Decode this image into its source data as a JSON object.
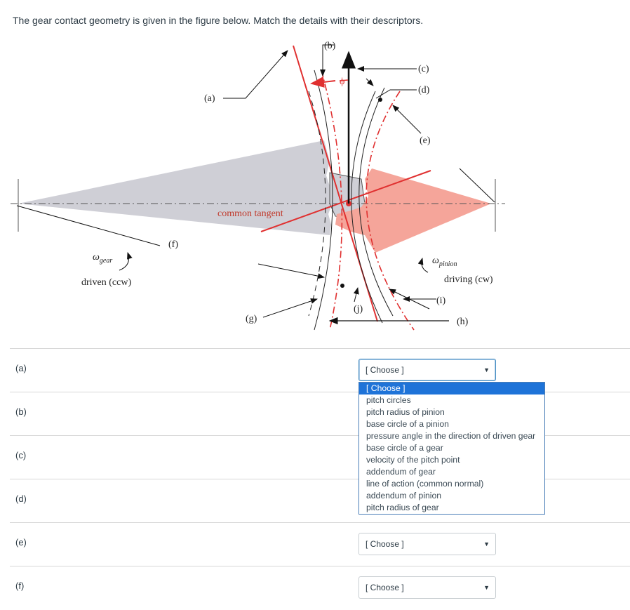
{
  "question": "The gear contact geometry is given in the figure below. Match the details with their descriptors.",
  "figure": {
    "labels": {
      "a": "(a)",
      "b": "(b)",
      "c": "(c)",
      "d": "(d)",
      "e": "(e)",
      "f": "(f)",
      "g": "(g)",
      "h": "(h)",
      "i": "(i)",
      "j": "(j)",
      "phi": "ϕ",
      "common_tangent": "common tangent",
      "omega": "ω",
      "gear_sub": "gear",
      "pinion_sub": "pinion",
      "driven": "driven (ccw)",
      "driving": "driving (cw)"
    },
    "colors": {
      "gear_fill": "#cfcfd6",
      "pinion_fill": "#f5a59a",
      "red": "#e03030"
    }
  },
  "rows": [
    {
      "label": "(a)",
      "value": "[ Choose ]",
      "open": true
    },
    {
      "label": "(b)",
      "value": "",
      "open": false
    },
    {
      "label": "(c)",
      "value": "",
      "open": false
    },
    {
      "label": "(d)",
      "value": "",
      "open": false
    },
    {
      "label": "(e)",
      "value": "[ Choose ]",
      "open": false
    },
    {
      "label": "(f)",
      "value": "[ Choose ]",
      "open": false
    }
  ],
  "dropdown_options": [
    "[ Choose ]",
    "pitch circles",
    "pitch radius of pinion",
    "base circle of a pinion",
    "pressure angle in the direction of driven gear",
    "base circle of a gear",
    "velocity of the pitch point",
    "addendum of gear",
    "line of action (common normal)",
    "addendum of pinion",
    "pitch radius of gear"
  ],
  "dropdown_selected_index": 0
}
